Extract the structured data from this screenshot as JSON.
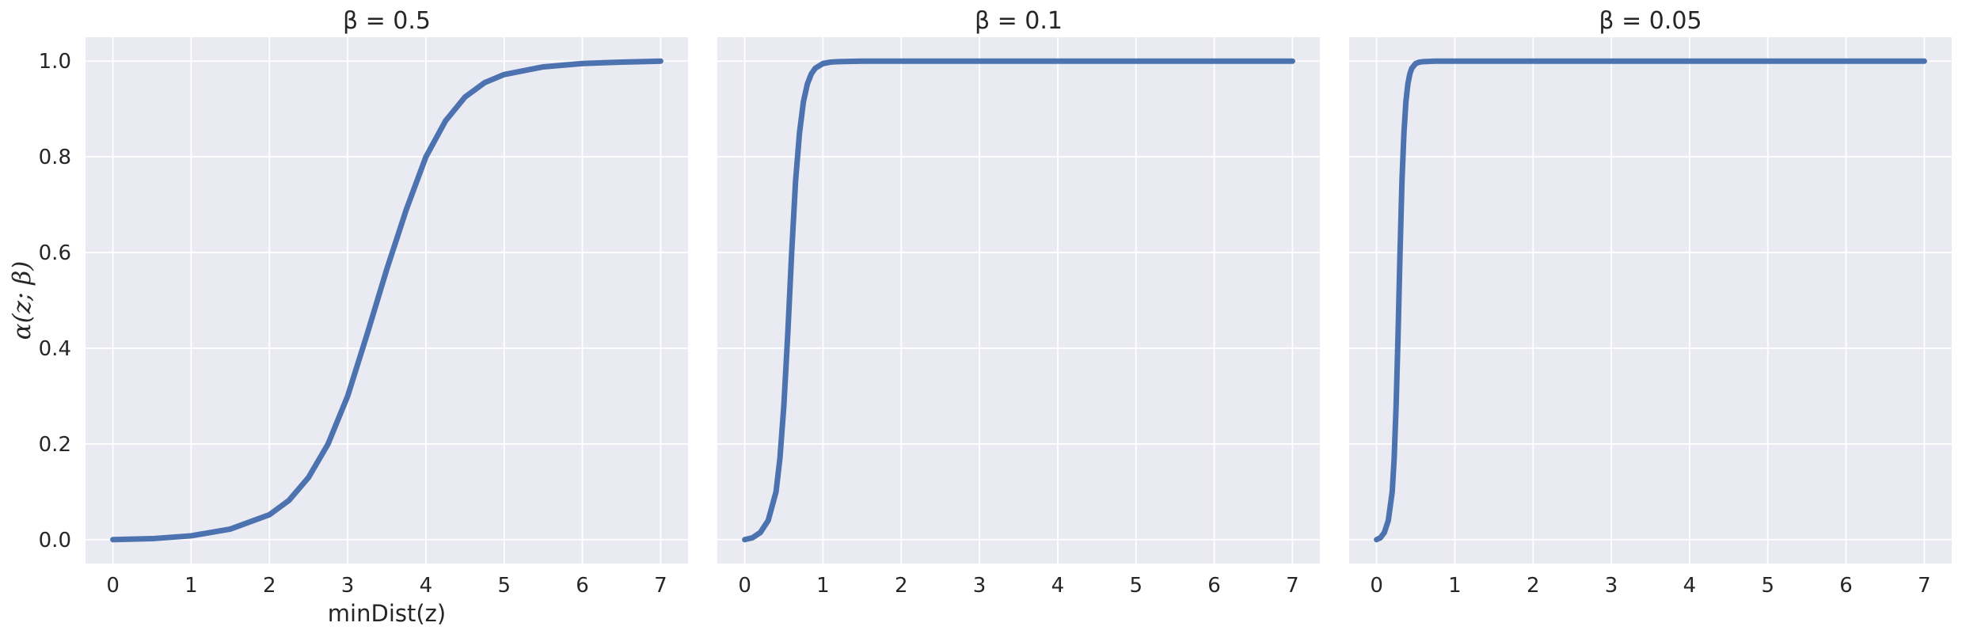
{
  "chart_data": [
    {
      "type": "line",
      "title": "β = 0.5",
      "xlabel": "minDist(z)",
      "ylabel": "α(z; β)",
      "xlim": [
        -0.35,
        7.35
      ],
      "ylim": [
        -0.05,
        1.05
      ],
      "xticks": [
        "0",
        "1",
        "2",
        "3",
        "4",
        "5",
        "6",
        "7"
      ],
      "yticks": [
        "0.0",
        "0.2",
        "0.4",
        "0.6",
        "0.8",
        "1.0"
      ],
      "grid": true,
      "series": [
        {
          "color": "#4c72b0",
          "x": [
            0,
            0.5,
            1.0,
            1.5,
            2.0,
            2.25,
            2.5,
            2.75,
            3.0,
            3.25,
            3.5,
            3.75,
            4.0,
            4.25,
            4.5,
            4.75,
            5.0,
            5.5,
            6.0,
            6.5,
            7.0
          ],
          "y": [
            0.0,
            0.002,
            0.008,
            0.022,
            0.052,
            0.082,
            0.13,
            0.2,
            0.3,
            0.43,
            0.565,
            0.69,
            0.8,
            0.875,
            0.925,
            0.955,
            0.972,
            0.988,
            0.995,
            0.998,
            1.0
          ]
        }
      ]
    },
    {
      "type": "line",
      "title": "β = 0.1",
      "xlabel": "",
      "ylabel": "",
      "xlim": [
        -0.35,
        7.35
      ],
      "ylim": [
        -0.05,
        1.05
      ],
      "xticks": [
        "0",
        "1",
        "2",
        "3",
        "4",
        "5",
        "6",
        "7"
      ],
      "yticks": [],
      "grid": true,
      "series": [
        {
          "color": "#4c72b0",
          "x": [
            0,
            0.1,
            0.2,
            0.3,
            0.4,
            0.45,
            0.5,
            0.55,
            0.6,
            0.65,
            0.7,
            0.75,
            0.8,
            0.85,
            0.9,
            1.0,
            1.1,
            1.2,
            1.5,
            2.0,
            7.0
          ],
          "y": [
            0.0,
            0.004,
            0.015,
            0.04,
            0.1,
            0.17,
            0.28,
            0.43,
            0.6,
            0.75,
            0.85,
            0.915,
            0.952,
            0.973,
            0.985,
            0.995,
            0.998,
            0.999,
            1.0,
            1.0,
            1.0
          ]
        }
      ]
    },
    {
      "type": "line",
      "title": "β = 0.05",
      "xlabel": "",
      "ylabel": "",
      "xlim": [
        -0.35,
        7.35
      ],
      "ylim": [
        -0.05,
        1.05
      ],
      "xticks": [
        "0",
        "1",
        "2",
        "3",
        "4",
        "5",
        "6",
        "7"
      ],
      "yticks": [],
      "grid": true,
      "series": [
        {
          "color": "#4c72b0",
          "x": [
            0,
            0.05,
            0.1,
            0.15,
            0.2,
            0.225,
            0.25,
            0.275,
            0.3,
            0.325,
            0.35,
            0.375,
            0.4,
            0.425,
            0.45,
            0.5,
            0.55,
            0.6,
            0.75,
            1.0,
            7.0
          ],
          "y": [
            0.0,
            0.004,
            0.015,
            0.04,
            0.1,
            0.17,
            0.28,
            0.43,
            0.6,
            0.75,
            0.85,
            0.915,
            0.952,
            0.973,
            0.985,
            0.995,
            0.998,
            0.999,
            1.0,
            1.0,
            1.0
          ]
        }
      ]
    }
  ]
}
